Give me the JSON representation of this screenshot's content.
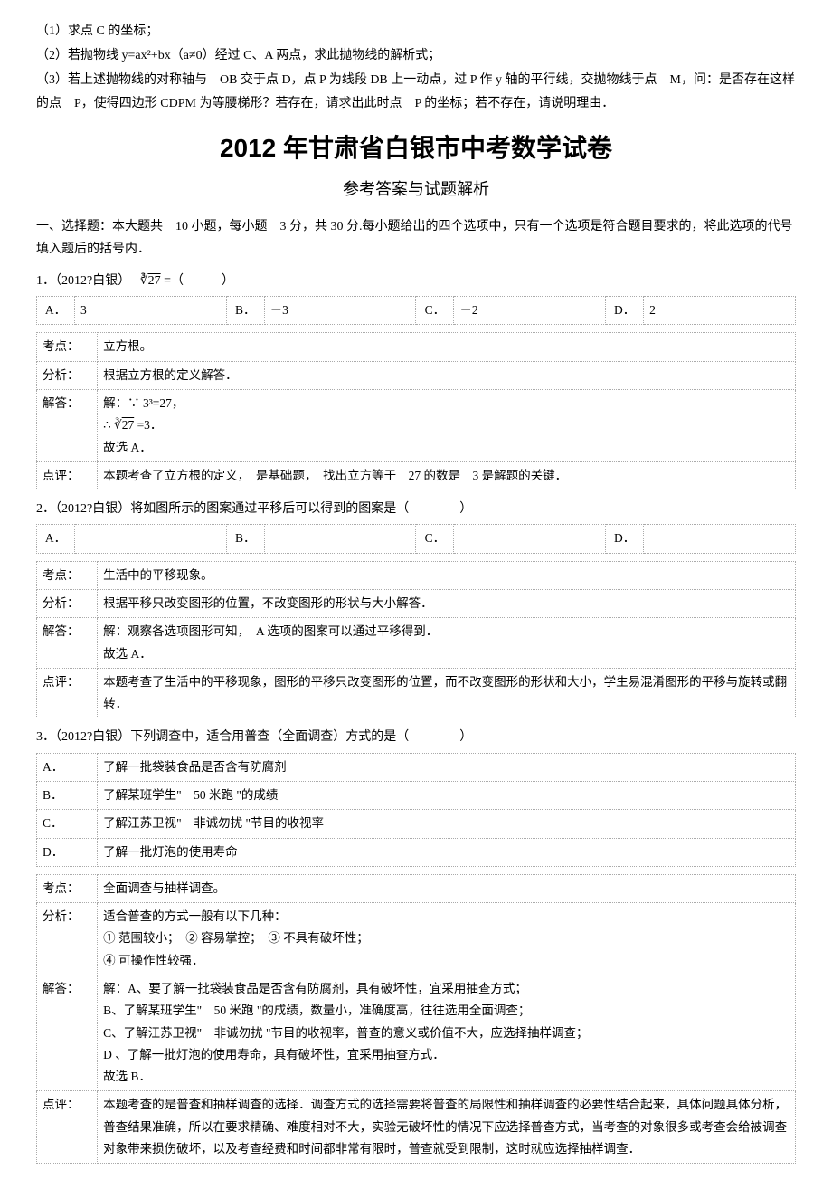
{
  "intro": {
    "line1": "（1）求点 C 的坐标；",
    "line2": "（2）若抛物线 y=ax²+bx（a≠0）经过 C、A 两点，求此抛物线的解析式；",
    "line3": "（3）若上述抛物线的对称轴与　OB 交于点 D，点 P 为线段 DB 上一动点，过 P 作 y 轴的平行线，交抛物线于点　M，问：是否存在这样的点　P，使得四边形 CDPM 为等腰梯形？若存在，请求出此时点　P 的坐标；若不存在，请说明理由．"
  },
  "mainTitle": "2012 年甘肃省白银市中考数学试卷",
  "subTitle": "参考答案与试题解析",
  "sectionDesc": "一、选择题：本大题共　10 小题，每小题　3 分，共 30 分.每小题给出的四个选项中，只有一个选项是符合题目要求的，将此选项的代号填入题后的括号内．",
  "q1": {
    "stem_prefix": "1．（2012?白银）　",
    "stem_suffix": "=（　　　）",
    "opts": {
      "A": "3",
      "B": "－3",
      "C": "－2",
      "D": "2"
    },
    "kaodian_label": "考点：",
    "kaodian": "立方根。",
    "fenxi_label": "分析：",
    "fenxi": "根据立方根的定义解答．",
    "jieda_label": "解答：",
    "jieda1": "解：∵ 3³=27，",
    "jieda2_prefix": "∴",
    "jieda2_suffix": "=3．",
    "jieda3": "故选 A．",
    "dianping_label": "点评：",
    "dianping": "本题考查了立方根的定义，　是基础题，　找出立方等于　27 的数是　3 是解题的关键．"
  },
  "q2": {
    "stem": "2．（2012?白银）将如图所示的图案通过平移后可以得到的图案是（　　　　）",
    "opts": {
      "A": "",
      "B": "",
      "C": "",
      "D": ""
    },
    "kaodian_label": "考点：",
    "kaodian": "生活中的平移现象。",
    "fenxi_label": "分析：",
    "fenxi": "根据平移只改变图形的位置，不改变图形的形状与大小解答．",
    "jieda_label": "解答：",
    "jieda1": "解：观察各选项图形可知，　A 选项的图案可以通过平移得到．",
    "jieda2": "故选 A．",
    "dianping_label": "点评：",
    "dianping": "本题考查了生活中的平移现象，图形的平移只改变图形的位置，而不改变图形的形状和大小，学生易混淆图形的平移与旋转或翻转．"
  },
  "q3": {
    "stem": "3．（2012?白银）下列调查中，适合用普查（全面调查）方式的是（　　　　）",
    "optA_label": "A．",
    "optA": "了解一批袋装食品是否含有防腐剂",
    "optB_label": "B．",
    "optB": "了解某班学生\"　50 米跑 \"的成绩",
    "optC_label": "C．",
    "optC": "了解江苏卫视\"　非诚勿扰 \"节目的收视率",
    "optD_label": "D．",
    "optD": "了解一批灯泡的使用寿命",
    "kaodian_label": "考点：",
    "kaodian": "全面调查与抽样调查。",
    "fenxi_label": "分析：",
    "fenxi1": "适合普查的方式一般有以下几种：",
    "fenxi2": "① 范围较小；　② 容易掌控；　③ 不具有破坏性；",
    "fenxi3": "④ 可操作性较强．",
    "jieda_label": "解答：",
    "jieda1": "解：A、要了解一批袋装食品是否含有防腐剂，具有破坏性，宜采用抽查方式；",
    "jieda2": "B、了解某班学生\"　50 米跑 \"的成绩，数量小，准确度高，往往选用全面调查；",
    "jieda3": "C、了解江苏卫视\"　非诚勿扰 \"节目的收视率，普查的意义或价值不大，应选择抽样调查；",
    "jieda4": "D 、了解一批灯泡的使用寿命，具有破坏性，宜采用抽查方式．",
    "jieda5": "故选 B．",
    "dianping_label": "点评：",
    "dianping": "本题考查的是普查和抽样调查的选择．调查方式的选择需要将普查的局限性和抽样调查的必要性结合起来，具体问题具体分析，普查结果准确，所以在要求精确、难度相对不大，实验无破坏性的情况下应选择普查方式，当考查的对象很多或考查会给被调查对象带来损伤破坏，以及考查经费和时间都非常有限时，普查就受到限制，这时就应选择抽样调查．"
  }
}
